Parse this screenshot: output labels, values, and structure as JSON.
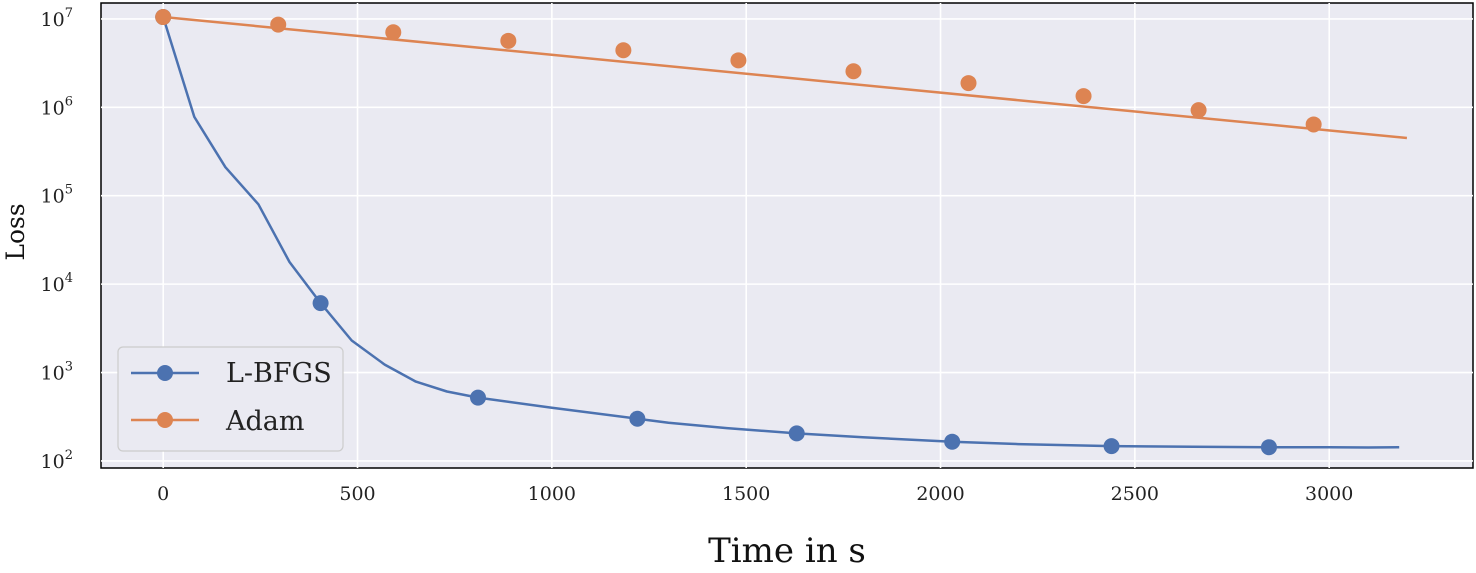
{
  "chart_data": {
    "type": "line",
    "xlabel": "Time in s",
    "ylabel": "Loss",
    "y_scale": "log",
    "xlim": [
      -160,
      3370
    ],
    "ylim_exp": [
      1.92,
      7.18
    ],
    "grid": true,
    "legend_position": "lower-left",
    "x_ticks": [
      0,
      500,
      1000,
      1500,
      2000,
      2500,
      3000
    ],
    "y_ticks": [
      {
        "value": 100,
        "base": "10",
        "exp": "2"
      },
      {
        "value": 1000,
        "base": "10",
        "exp": "3"
      },
      {
        "value": 10000,
        "base": "10",
        "exp": "4"
      },
      {
        "value": 100000,
        "base": "10",
        "exp": "5"
      },
      {
        "value": 1000000,
        "base": "10",
        "exp": "6"
      },
      {
        "value": 10000000,
        "base": "10",
        "exp": "7"
      }
    ],
    "series": [
      {
        "name": "L-BFGS",
        "color": "#4c72b0",
        "x": [
          0,
          80,
          160,
          245,
          325,
          405,
          485,
          570,
          650,
          730,
          810,
          1000,
          1220,
          1300,
          1450,
          1630,
          1800,
          2030,
          2200,
          2440,
          2650,
          2845,
          3000,
          3100,
          3180
        ],
        "y": [
          10500000,
          780000,
          210000,
          80000,
          17800,
          6100,
          2300,
          1230,
          790,
          610,
          520,
          400,
          300,
          270,
          235,
          205,
          185,
          165,
          155,
          147,
          145,
          143,
          143,
          142,
          143
        ],
        "marker_x": [
          0,
          405,
          810,
          1220,
          1630,
          2030,
          2440,
          2845
        ],
        "marker_y": [
          10500000,
          6100,
          520,
          300,
          205,
          165,
          147,
          143
        ]
      },
      {
        "name": "Adam",
        "color": "#dd8452",
        "x": [
          0,
          3200
        ],
        "y": [
          10500000,
          450000
        ],
        "marker_x": [
          0,
          296,
          592,
          888,
          1184,
          1480,
          1776,
          2072,
          2368,
          2664,
          2960
        ],
        "marker_y": [
          10500000,
          8630000,
          7060000,
          5650000,
          4420000,
          3400000,
          2560000,
          1880000,
          1340000,
          930000,
          640000
        ]
      }
    ]
  }
}
